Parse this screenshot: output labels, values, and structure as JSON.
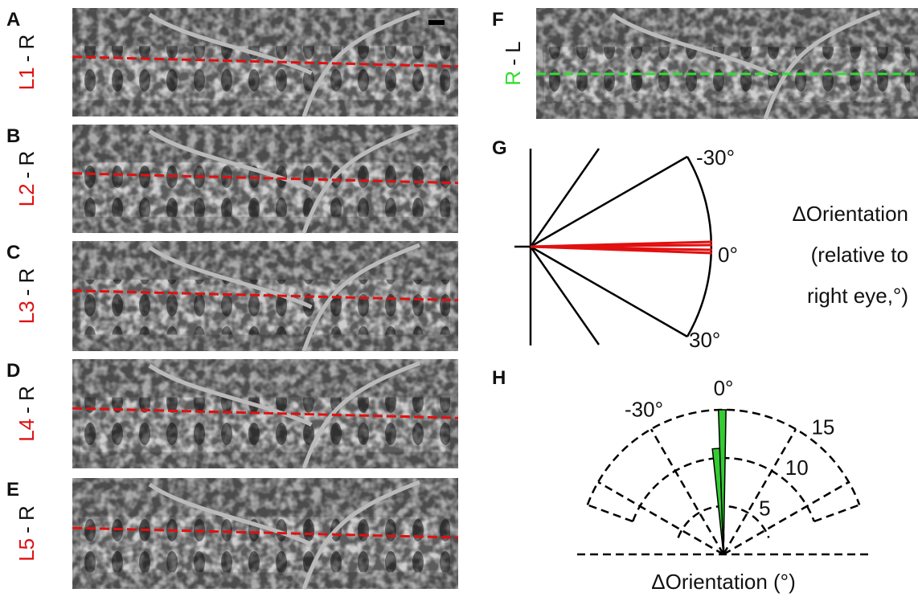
{
  "map_panels": [
    {
      "letter": "A",
      "eye": "L1",
      "ref": "- R"
    },
    {
      "letter": "B",
      "eye": "L2",
      "ref": "- R"
    },
    {
      "letter": "C",
      "eye": "L3",
      "ref": "- R"
    },
    {
      "letter": "D",
      "eye": "L4",
      "ref": "- R"
    },
    {
      "letter": "E",
      "eye": "L5",
      "ref": "- R"
    }
  ],
  "panel_f": {
    "letter": "F",
    "eye": "R",
    "ref": "- L"
  },
  "panel_g": {
    "letter": "G",
    "angle_top": "-30°",
    "angle_bottom": "30°",
    "angle_zero": "0°",
    "axis_label": [
      "ΔOrientation",
      "(relative to",
      "right eye,°)"
    ]
  },
  "panel_h": {
    "letter": "H",
    "angle_labels": [
      {
        "value": 0,
        "label": "0°"
      },
      {
        "value": -30,
        "label": "-30°"
      }
    ],
    "radial_ticks": [
      5,
      10,
      15
    ],
    "rlim": [
      0,
      15
    ],
    "color": "#33cc33",
    "bins": [
      {
        "from": -6,
        "to": -2,
        "count": 11
      },
      {
        "from": -2,
        "to": 1,
        "count": 15
      }
    ],
    "axis_label": "ΔOrientation (°)"
  }
}
